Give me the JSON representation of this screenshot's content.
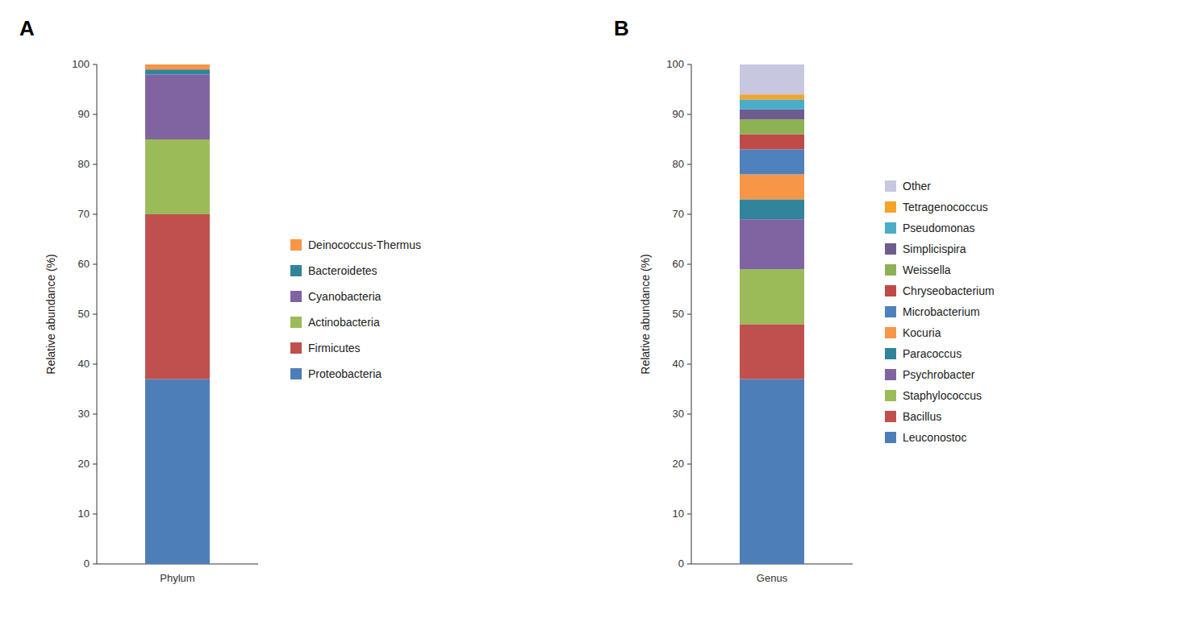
{
  "chart_data": [
    {
      "type": "bar",
      "stacked": true,
      "title": "A",
      "y_label": "Relative abundance (%)",
      "categories": [
        "Phylum"
      ],
      "series": [
        {
          "name": "Proteobacteria",
          "color": "#4e7eb8",
          "values": [
            37
          ]
        },
        {
          "name": "Firmicutes",
          "color": "#c0504d",
          "values": [
            33
          ]
        },
        {
          "name": "Actinobacteria",
          "color": "#9bbb59",
          "values": [
            15
          ]
        },
        {
          "name": "Cyanobacteria",
          "color": "#8064a2",
          "values": [
            13
          ]
        },
        {
          "name": "Bacteroidetes",
          "color": "#31849b",
          "values": [
            1
          ]
        },
        {
          "name": "Deinococcus-Thermus",
          "color": "#f79646",
          "values": [
            1
          ]
        }
      ],
      "ylim": [
        0,
        100
      ],
      "yticks": [
        0,
        10,
        20,
        30,
        40,
        50,
        60,
        70,
        80,
        90,
        100
      ],
      "grid": false,
      "legend": "right"
    },
    {
      "type": "bar",
      "stacked": true,
      "title": "B",
      "y_label": "Relative abundance (%)",
      "categories": [
        "Genus"
      ],
      "series": [
        {
          "name": "Leuconostoc",
          "color": "#4e7eb8",
          "values": [
            37
          ]
        },
        {
          "name": "Bacillus",
          "color": "#c0504d",
          "values": [
            11
          ]
        },
        {
          "name": "Staphylococcus",
          "color": "#9bbb59",
          "values": [
            11
          ]
        },
        {
          "name": "Psychrobacter",
          "color": "#8064a2",
          "values": [
            10
          ]
        },
        {
          "name": "Paracoccus",
          "color": "#31849b",
          "values": [
            4
          ]
        },
        {
          "name": "Kocuria",
          "color": "#f79646",
          "values": [
            5
          ]
        },
        {
          "name": "Microbacterium",
          "color": "#4f81bd",
          "values": [
            5
          ]
        },
        {
          "name": "Chryseobacterium",
          "color": "#be4b48",
          "values": [
            3
          ]
        },
        {
          "name": "Weissella",
          "color": "#8db255",
          "values": [
            3
          ]
        },
        {
          "name": "Simplicispira",
          "color": "#6e5c8e",
          "values": [
            2
          ]
        },
        {
          "name": "Pseudomonas",
          "color": "#4bacc6",
          "values": [
            2
          ]
        },
        {
          "name": "Tetragenococcus",
          "color": "#f4a428",
          "values": [
            1
          ]
        },
        {
          "name": "Other",
          "color": "#c7c7e0",
          "values": [
            6
          ]
        }
      ],
      "ylim": [
        0,
        100
      ],
      "yticks": [
        0,
        10,
        20,
        30,
        40,
        50,
        60,
        70,
        80,
        90,
        100
      ],
      "grid": false,
      "legend": "right"
    }
  ]
}
